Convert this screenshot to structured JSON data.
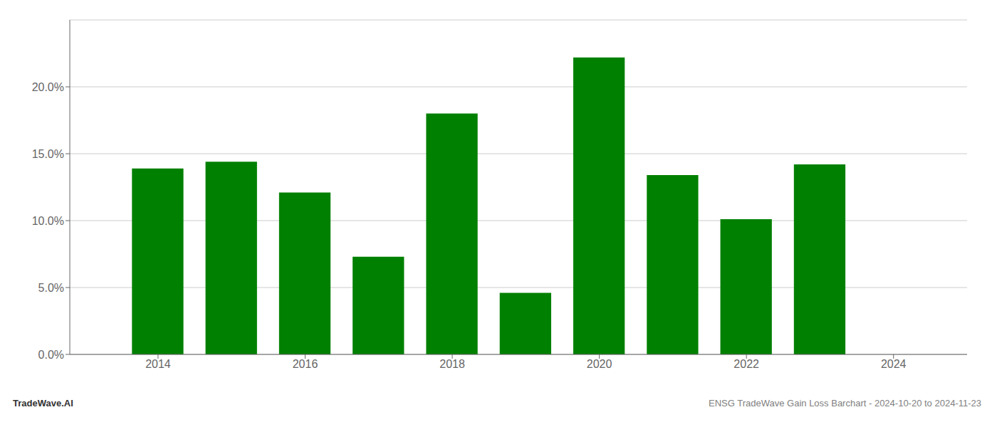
{
  "chart_data": {
    "type": "bar",
    "x": [
      2014,
      2015,
      2016,
      2017,
      2018,
      2019,
      2020,
      2021,
      2022,
      2023
    ],
    "values": [
      0.139,
      0.144,
      0.121,
      0.073,
      0.18,
      0.046,
      0.222,
      0.134,
      0.101,
      0.142
    ],
    "color": "#008000",
    "xlim": [
      2012.8,
      2025.0
    ],
    "xticks": [
      2014,
      2016,
      2018,
      2020,
      2022,
      2024
    ],
    "ylim": [
      0,
      0.25
    ],
    "yticks": [
      {
        "value": 0,
        "label": "0.0%"
      },
      {
        "value": 0.05,
        "label": "5.0%"
      },
      {
        "value": 0.1,
        "label": "10.0%"
      },
      {
        "value": 0.15,
        "label": "15.0%"
      },
      {
        "value": 0.2,
        "label": "20.0%"
      }
    ],
    "grid": true,
    "annotations": [
      "TradeWave.AI",
      "ENSG TradeWave Gain Loss Barchart - 2024-10-20 to 2024-11-23"
    ]
  }
}
